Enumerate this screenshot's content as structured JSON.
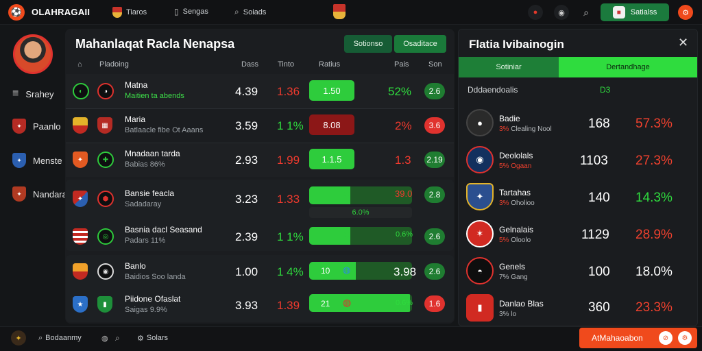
{
  "header": {
    "logo_text": "OLAHRAGAII",
    "nav": [
      {
        "label": "Tiaros",
        "icon": "shield-icon"
      },
      {
        "label": "Sengas",
        "icon": "phone-icon"
      },
      {
        "label": "Soiads",
        "icon": "search-icon"
      }
    ],
    "signin_label": "Satialss"
  },
  "sidebar": {
    "items": [
      {
        "label": "Srahey",
        "icon": "menu-icon"
      },
      {
        "label": "Paanlo",
        "icon": "club-crest-icon"
      },
      {
        "label": "Menste",
        "icon": "club-crest-icon"
      },
      {
        "label": "Nandara",
        "icon": "club-crest-icon"
      }
    ]
  },
  "main": {
    "title": "Mahanlaqat Racla Nenapsa",
    "pills": [
      "Sotionso",
      "Osaditace"
    ],
    "columns": [
      "Pladoing",
      "Dass",
      "Tinto",
      "Ratius",
      "Pais",
      "Son"
    ],
    "rows": [
      {
        "name": "Matna",
        "sub": "Maitien ta  abends",
        "sub_green": true,
        "v1": "4.39",
        "v2": "1.36",
        "v2_color": "red",
        "odd": "1.50",
        "odd_type": "green",
        "pct": "52%",
        "pct_color": "green",
        "badge": "2.6",
        "badge_color": "green"
      },
      {
        "name": "Maria",
        "sub": "Batlaacle fibe Ot Aaans",
        "sub_green": false,
        "v1": "3.59",
        "v2": "1 1%",
        "v2_color": "green",
        "odd": "8.08",
        "odd_type": "red",
        "pct": "2%",
        "pct_color": "red",
        "badge": "3.6",
        "badge_color": "red"
      },
      {
        "name": "Mnadaan tarda",
        "sub": "Babias 86%",
        "sub_green": false,
        "v1": "2.93",
        "v2": "1.99",
        "v2_color": "red",
        "odd": "1.1.5",
        "odd_type": "green",
        "pct": "1.3",
        "pct_color": "red",
        "badge": "2.19",
        "badge_color": "green"
      },
      {
        "name": "Bansie feacla",
        "sub": "Sadadaray",
        "sub_green": false,
        "v1": "3.23",
        "v2": "1.33",
        "v2_color": "red",
        "odd": "",
        "odd_type": "bar",
        "bar_fill": 0.4,
        "bar_sub": "6.0%",
        "pct": "39.0",
        "pct_color": "red",
        "badge": "2.8",
        "badge_color": "green"
      },
      {
        "name": "Basnia dacl Seasand",
        "sub": "Padars 11%",
        "sub_green": false,
        "v1": "2.39",
        "v2": "1 1%",
        "v2_color": "green",
        "odd": "",
        "odd_type": "bar",
        "bar_fill": 0.4,
        "pct": "0.6%",
        "pct_color": "green",
        "badge": "2.6",
        "badge_color": "green"
      },
      {
        "name": "Banlo",
        "sub": "Baidios Soo landa",
        "sub_green": false,
        "v1": "1.00",
        "v2": "1 4%",
        "v2_color": "green",
        "odd": "10",
        "odd_type": "bar",
        "bar_fill": 0.45,
        "pct": "3.98",
        "pct_color": "white",
        "badge": "2.6",
        "badge_color": "green"
      },
      {
        "name": "Piidone Ofaslat",
        "sub": "Saigas 9.9%",
        "sub_green": false,
        "v1": "3.93",
        "v2": "1.39",
        "v2_color": "red",
        "odd": "21",
        "odd_type": "bar",
        "bar_fill": 0.98,
        "pct": "0.6%",
        "pct_color": "green",
        "badge": "1.6",
        "badge_color": "red"
      }
    ]
  },
  "panel": {
    "title": "Flatia Ivibainogin",
    "tabs": [
      "Sotiniar",
      "Dertandhage"
    ],
    "sub_left": "Dddaendoalis",
    "sub_right": "D3",
    "players": [
      {
        "name": "Badie",
        "sub_red": "3%",
        "sub": "Clealing Nool",
        "value": "168",
        "pct": "57.3%",
        "pct_color": "red"
      },
      {
        "name": "Deololals",
        "sub_red": "5%",
        "sub": "Ogaan",
        "value": "1103",
        "pct": "27.3%",
        "pct_color": "red"
      },
      {
        "name": "Tartahas",
        "sub_red": "3%",
        "sub": "Oholioo",
        "value": "140",
        "pct": "14.3%",
        "pct_color": "green"
      },
      {
        "name": "Gelnalais",
        "sub_red": "5%",
        "sub": "Oloolo",
        "value": "1129",
        "pct": "28.9%",
        "pct_color": "red"
      },
      {
        "name": "Genels",
        "sub_red": "",
        "sub": "7% Gang",
        "value": "100",
        "pct": "18.0%",
        "pct_color": "white"
      },
      {
        "name": "Danlao Blas",
        "sub_red": "",
        "sub": "3% lo",
        "value": "360",
        "pct": "23.3%",
        "pct_color": "red"
      }
    ]
  },
  "footer": {
    "items": [
      "Bodaanmy",
      "Solars"
    ],
    "cta_label": "AtMahaoabon"
  }
}
